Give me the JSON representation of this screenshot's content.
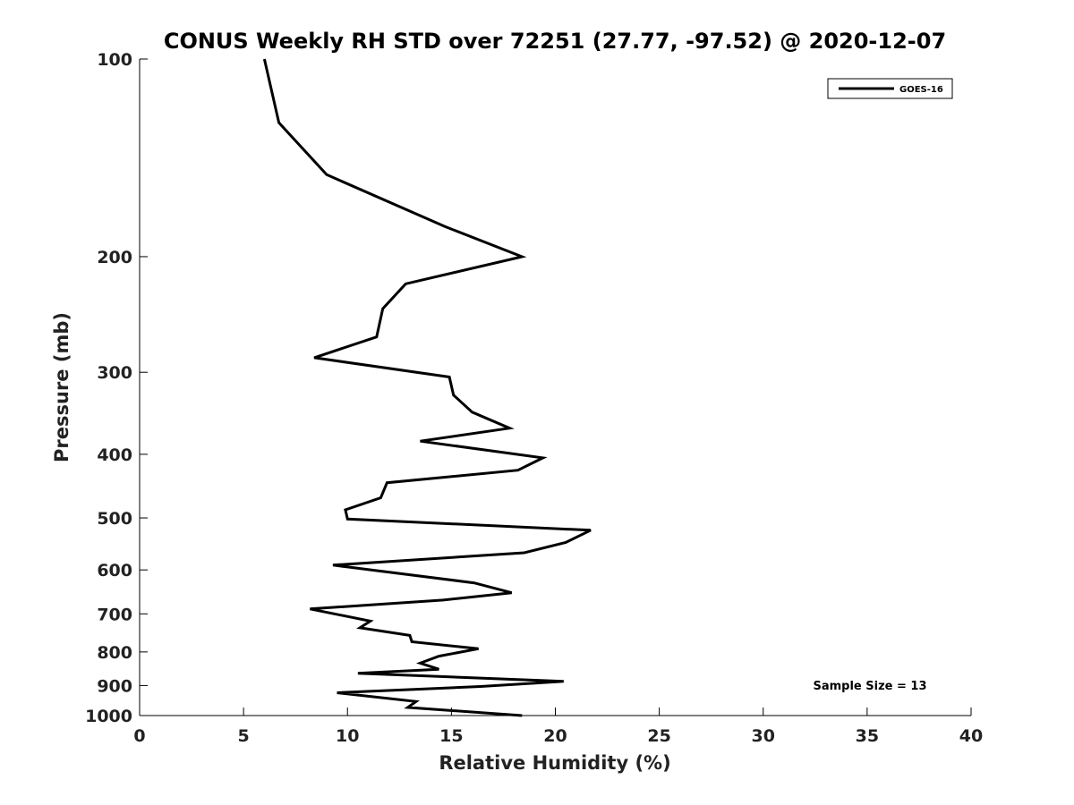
{
  "chart_data": {
    "type": "line",
    "title": "CONUS Weekly RH STD over 72251 (27.77, -97.52) @ 2020-12-07",
    "xlabel": "Relative Humidity (%)",
    "ylabel": "Pressure (mb)",
    "xlim": [
      0,
      40
    ],
    "ylim": [
      100,
      1000
    ],
    "yscale": "log",
    "y_reversed": true,
    "grid": false,
    "legend_position": "top-right",
    "x_ticks": [
      "0",
      "5",
      "10",
      "15",
      "20",
      "25",
      "30",
      "35",
      "40"
    ],
    "y_ticks": [
      "100",
      "200",
      "300",
      "400",
      "500",
      "600",
      "700",
      "800",
      "900",
      "1000"
    ],
    "annotation": "Sample Size = 13",
    "series": [
      {
        "name": "GOES-16",
        "color": "#000000",
        "points": [
          [
            6.0,
            100
          ],
          [
            6.7,
            125
          ],
          [
            9.0,
            150
          ],
          [
            14.7,
            180
          ],
          [
            18.4,
            200
          ],
          [
            12.8,
            220
          ],
          [
            11.7,
            240
          ],
          [
            11.4,
            265
          ],
          [
            8.4,
            285
          ],
          [
            14.9,
            305
          ],
          [
            15.1,
            325
          ],
          [
            16.0,
            345
          ],
          [
            17.8,
            365
          ],
          [
            13.5,
            382
          ],
          [
            19.4,
            405
          ],
          [
            18.2,
            423
          ],
          [
            11.9,
            442
          ],
          [
            11.6,
            466
          ],
          [
            9.9,
            486
          ],
          [
            10.0,
            502
          ],
          [
            21.7,
            522
          ],
          [
            20.5,
            545
          ],
          [
            18.5,
            565
          ],
          [
            9.3,
            590
          ],
          [
            16.1,
            628
          ],
          [
            17.9,
            650
          ],
          [
            14.6,
            667
          ],
          [
            8.2,
            688
          ],
          [
            11.1,
            718
          ],
          [
            10.6,
            735
          ],
          [
            13.0,
            755
          ],
          [
            13.1,
            772
          ],
          [
            16.3,
            791
          ],
          [
            14.4,
            812
          ],
          [
            13.5,
            832
          ],
          [
            14.4,
            850
          ],
          [
            10.5,
            862
          ],
          [
            20.4,
            887
          ],
          [
            16.4,
            903
          ],
          [
            9.5,
            923
          ],
          [
            13.3,
            952
          ],
          [
            12.9,
            972
          ],
          [
            18.4,
            1000
          ]
        ]
      }
    ]
  }
}
